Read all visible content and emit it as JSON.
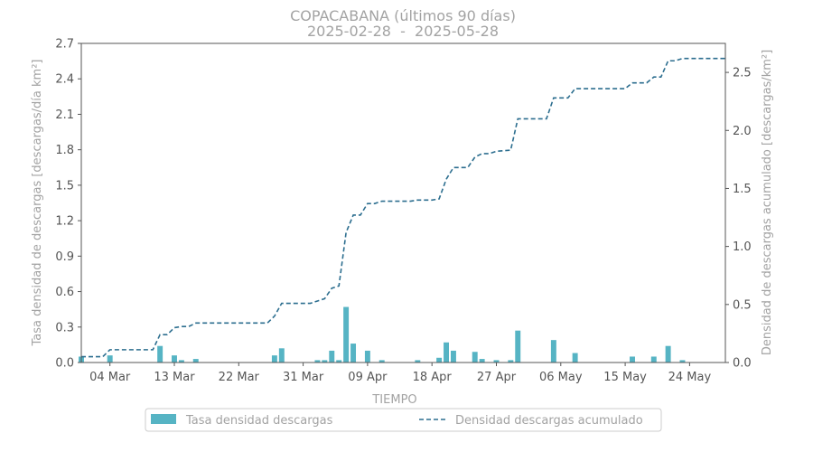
{
  "chart_data": {
    "type": "bar",
    "title": "COPACABANA (últimos 90 días)",
    "subtitle": "2025-02-28  -  2025-05-28",
    "xlabel": "TIEMPO",
    "ylabel": "Tasa densidad de descargas [descargas/día km²]",
    "ylabel_right": "Densidad de descargas acumulado [descargas/km²]",
    "x_range": [
      "2025-02-28",
      "2025-05-29"
    ],
    "ylim": [
      0,
      2.7
    ],
    "ylim_right": [
      0,
      2.75
    ],
    "yticks": [
      "0.0",
      "0.3",
      "0.6",
      "0.9",
      "1.2",
      "1.5",
      "1.8",
      "2.1",
      "2.4",
      "2.7"
    ],
    "yticks_right": [
      "0.0",
      "0.5",
      "1.0",
      "1.5",
      "2.0",
      "2.5"
    ],
    "xticks": [
      {
        "date": "2025-03-04",
        "label": "04 Mar"
      },
      {
        "date": "2025-03-13",
        "label": "13 Mar"
      },
      {
        "date": "2025-03-22",
        "label": "22 Mar"
      },
      {
        "date": "2025-03-31",
        "label": "31 Mar"
      },
      {
        "date": "2025-04-09",
        "label": "09 Apr"
      },
      {
        "date": "2025-04-18",
        "label": "18 Apr"
      },
      {
        "date": "2025-04-27",
        "label": "27 Apr"
      },
      {
        "date": "2025-05-06",
        "label": "06 May"
      },
      {
        "date": "2025-05-15",
        "label": "15 May"
      },
      {
        "date": "2025-05-24",
        "label": "24 May"
      }
    ],
    "grid": false,
    "legend_position": "bottom",
    "colors": {
      "bars": "#56b4c4",
      "line": "#2c6e8f",
      "spine": "#555555"
    },
    "series": [
      {
        "name": "Tasa densidad descargas",
        "type": "bar",
        "axis": "left",
        "points": [
          {
            "x": "2025-02-28",
            "y": 0.05
          },
          {
            "x": "2025-03-04",
            "y": 0.06
          },
          {
            "x": "2025-03-11",
            "y": 0.14
          },
          {
            "x": "2025-03-13",
            "y": 0.06
          },
          {
            "x": "2025-03-14",
            "y": 0.02
          },
          {
            "x": "2025-03-16",
            "y": 0.03
          },
          {
            "x": "2025-03-27",
            "y": 0.06
          },
          {
            "x": "2025-03-28",
            "y": 0.12
          },
          {
            "x": "2025-04-02",
            "y": 0.02
          },
          {
            "x": "2025-04-03",
            "y": 0.02
          },
          {
            "x": "2025-04-04",
            "y": 0.1
          },
          {
            "x": "2025-04-05",
            "y": 0.02
          },
          {
            "x": "2025-04-06",
            "y": 0.47
          },
          {
            "x": "2025-04-07",
            "y": 0.16
          },
          {
            "x": "2025-04-09",
            "y": 0.1
          },
          {
            "x": "2025-04-11",
            "y": 0.02
          },
          {
            "x": "2025-04-16",
            "y": 0.02
          },
          {
            "x": "2025-04-19",
            "y": 0.04
          },
          {
            "x": "2025-04-20",
            "y": 0.17
          },
          {
            "x": "2025-04-21",
            "y": 0.1
          },
          {
            "x": "2025-04-24",
            "y": 0.09
          },
          {
            "x": "2025-04-25",
            "y": 0.03
          },
          {
            "x": "2025-04-27",
            "y": 0.02
          },
          {
            "x": "2025-04-29",
            "y": 0.02
          },
          {
            "x": "2025-04-30",
            "y": 0.27
          },
          {
            "x": "2025-05-05",
            "y": 0.19
          },
          {
            "x": "2025-05-08",
            "y": 0.08
          },
          {
            "x": "2025-05-16",
            "y": 0.05
          },
          {
            "x": "2025-05-19",
            "y": 0.05
          },
          {
            "x": "2025-05-21",
            "y": 0.14
          },
          {
            "x": "2025-05-23",
            "y": 0.02
          }
        ]
      },
      {
        "name": "Densidad descargas acumulado",
        "type": "line",
        "axis": "right",
        "points": [
          {
            "x": "2025-02-28",
            "y": 0.05
          },
          {
            "x": "2025-03-03",
            "y": 0.05
          },
          {
            "x": "2025-03-04",
            "y": 0.11
          },
          {
            "x": "2025-03-10",
            "y": 0.11
          },
          {
            "x": "2025-03-11",
            "y": 0.24
          },
          {
            "x": "2025-03-12",
            "y": 0.24
          },
          {
            "x": "2025-03-13",
            "y": 0.3
          },
          {
            "x": "2025-03-14",
            "y": 0.31
          },
          {
            "x": "2025-03-15",
            "y": 0.31
          },
          {
            "x": "2025-03-16",
            "y": 0.34
          },
          {
            "x": "2025-03-26",
            "y": 0.34
          },
          {
            "x": "2025-03-27",
            "y": 0.4
          },
          {
            "x": "2025-03-28",
            "y": 0.51
          },
          {
            "x": "2025-04-01",
            "y": 0.51
          },
          {
            "x": "2025-04-02",
            "y": 0.53
          },
          {
            "x": "2025-04-03",
            "y": 0.55
          },
          {
            "x": "2025-04-04",
            "y": 0.64
          },
          {
            "x": "2025-04-05",
            "y": 0.66
          },
          {
            "x": "2025-04-06",
            "y": 1.12
          },
          {
            "x": "2025-04-07",
            "y": 1.27
          },
          {
            "x": "2025-04-08",
            "y": 1.27
          },
          {
            "x": "2025-04-09",
            "y": 1.37
          },
          {
            "x": "2025-04-10",
            "y": 1.37
          },
          {
            "x": "2025-04-11",
            "y": 1.39
          },
          {
            "x": "2025-04-15",
            "y": 1.39
          },
          {
            "x": "2025-04-16",
            "y": 1.4
          },
          {
            "x": "2025-04-18",
            "y": 1.4
          },
          {
            "x": "2025-04-19",
            "y": 1.41
          },
          {
            "x": "2025-04-20",
            "y": 1.58
          },
          {
            "x": "2025-04-21",
            "y": 1.68
          },
          {
            "x": "2025-04-23",
            "y": 1.68
          },
          {
            "x": "2025-04-24",
            "y": 1.77
          },
          {
            "x": "2025-04-25",
            "y": 1.8
          },
          {
            "x": "2025-04-26",
            "y": 1.8
          },
          {
            "x": "2025-04-27",
            "y": 1.82
          },
          {
            "x": "2025-04-29",
            "y": 1.83
          },
          {
            "x": "2025-04-30",
            "y": 2.1
          },
          {
            "x": "2025-05-04",
            "y": 2.1
          },
          {
            "x": "2025-05-05",
            "y": 2.28
          },
          {
            "x": "2025-05-07",
            "y": 2.28
          },
          {
            "x": "2025-05-08",
            "y": 2.36
          },
          {
            "x": "2025-05-15",
            "y": 2.36
          },
          {
            "x": "2025-05-16",
            "y": 2.41
          },
          {
            "x": "2025-05-18",
            "y": 2.41
          },
          {
            "x": "2025-05-19",
            "y": 2.46
          },
          {
            "x": "2025-05-20",
            "y": 2.46
          },
          {
            "x": "2025-05-21",
            "y": 2.6
          },
          {
            "x": "2025-05-22",
            "y": 2.6
          },
          {
            "x": "2025-05-23",
            "y": 2.62
          },
          {
            "x": "2025-05-29",
            "y": 2.62
          }
        ]
      }
    ]
  }
}
